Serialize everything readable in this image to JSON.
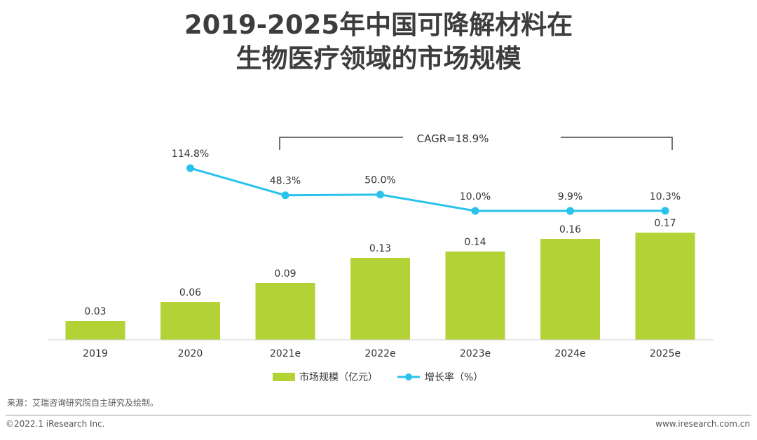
{
  "title_line1": "2019-2025年中国可降解材料在",
  "title_line2": "生物医疗领域的市场规模",
  "chart_data": {
    "type": "bar",
    "categories": [
      "2019",
      "2020",
      "2021e",
      "2022e",
      "2023e",
      "2024e",
      "2025e"
    ],
    "series": [
      {
        "name": "市场规模（亿元）",
        "type": "bar",
        "color": "#b2d235",
        "values": [
          0.03,
          0.06,
          0.09,
          0.13,
          0.14,
          0.16,
          0.17
        ],
        "labels": [
          "0.03",
          "0.06",
          "0.09",
          "0.13",
          "0.14",
          "0.16",
          "0.17"
        ]
      },
      {
        "name": "增长率（%）",
        "type": "line",
        "color": "#29c2ec",
        "values": [
          null,
          114.8,
          48.3,
          50.0,
          10.0,
          9.9,
          10.3
        ],
        "labels": [
          "",
          "114.8%",
          "48.3%",
          "50.0%",
          "10.0%",
          "9.9%",
          "10.3%"
        ]
      }
    ],
    "annotation": "CAGR=18.9%",
    "bar_ylim": [
      0,
      0.17
    ],
    "line_ylim": [
      10.0,
      114.8
    ],
    "legend_position": "bottom"
  },
  "source": "来源：艾瑞咨询研究院自主研究及绘制。",
  "copyright": "©2022.1 iResearch Inc.",
  "website": "www.iresearch.com.cn"
}
